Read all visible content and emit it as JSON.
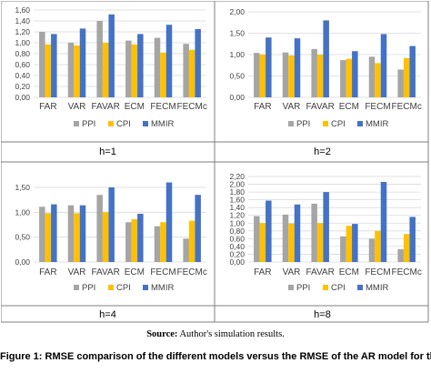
{
  "source_label": "Source:",
  "source_text": "Author's simulation results.",
  "figure_caption": "Figure 1: RMSE comparison of the different models versus the RMSE of the AR model for the",
  "colors": {
    "PPI": "#a5a5a5",
    "CPI": "#ffc000",
    "MMIR": "#4472c4",
    "grid": "#d9d9d9",
    "border": "#7f7f7f"
  },
  "chart_data": [
    {
      "type": "bar",
      "panel_label": "h=1",
      "categories": [
        "FAR",
        "VAR",
        "FAVAR",
        "ECM",
        "FECM",
        "FECMc"
      ],
      "series": [
        {
          "name": "PPI",
          "values": [
            1.2,
            1.0,
            1.4,
            1.04,
            1.09,
            0.98
          ]
        },
        {
          "name": "CPI",
          "values": [
            0.97,
            0.95,
            1.0,
            0.97,
            0.82,
            0.87
          ]
        },
        {
          "name": "MMIR",
          "values": [
            1.16,
            1.26,
            1.52,
            1.16,
            1.33,
            1.25
          ]
        }
      ],
      "ylim": [
        0,
        1.6
      ],
      "yticks": [
        "0,00",
        "0,20",
        "0,40",
        "0,60",
        "0,80",
        "1,00",
        "1,20",
        "1,40",
        "1,60"
      ],
      "tick_values": [
        0,
        0.2,
        0.4,
        0.6,
        0.8,
        1.0,
        1.2,
        1.4,
        1.6
      ],
      "legend": "bottom",
      "grid": true
    },
    {
      "type": "bar",
      "panel_label": "h=2",
      "categories": [
        "FAR",
        "VAR",
        "FAVAR",
        "ECM",
        "FECM",
        "FECMc"
      ],
      "series": [
        {
          "name": "PPI",
          "values": [
            1.04,
            1.05,
            1.13,
            0.87,
            0.95,
            0.65
          ]
        },
        {
          "name": "CPI",
          "values": [
            1.0,
            0.98,
            1.0,
            0.9,
            0.8,
            0.92
          ]
        },
        {
          "name": "MMIR",
          "values": [
            1.4,
            1.38,
            1.8,
            1.08,
            1.48,
            1.2
          ]
        }
      ],
      "ylim": [
        0,
        2.0
      ],
      "yticks": [
        "0,00",
        "0,50",
        "1,00",
        "1,50",
        "2,00"
      ],
      "tick_values": [
        0,
        0.5,
        1.0,
        1.5,
        2.0
      ],
      "legend": "bottom",
      "grid": true
    },
    {
      "type": "bar",
      "panel_label": "h=4",
      "categories": [
        "FAR",
        "VAR",
        "FAVAR",
        "ECM",
        "FECM",
        "FECMc"
      ],
      "series": [
        {
          "name": "PPI",
          "values": [
            1.11,
            1.14,
            1.35,
            0.8,
            0.72,
            0.47
          ]
        },
        {
          "name": "CPI",
          "values": [
            0.98,
            0.98,
            1.0,
            0.86,
            0.8,
            0.83
          ]
        },
        {
          "name": "MMIR",
          "values": [
            1.16,
            1.14,
            1.5,
            0.97,
            1.6,
            1.35
          ]
        }
      ],
      "ylim": [
        0,
        1.5
      ],
      "yticks": [
        "0,00",
        "0,50",
        "1,00",
        "1,50"
      ],
      "tick_values": [
        0,
        0.5,
        1.0,
        1.5
      ],
      "legend": "bottom",
      "grid": true
    },
    {
      "type": "bar",
      "panel_label": "h=8",
      "categories": [
        "FAR",
        "VAR",
        "FAVAR",
        "ECM",
        "FECM",
        "FECMc"
      ],
      "series": [
        {
          "name": "PPI",
          "values": [
            1.18,
            1.22,
            1.5,
            0.66,
            0.6,
            0.33
          ]
        },
        {
          "name": "CPI",
          "values": [
            1.0,
            0.99,
            1.0,
            0.93,
            0.8,
            0.72
          ]
        },
        {
          "name": "MMIR",
          "values": [
            1.58,
            1.48,
            1.8,
            0.98,
            2.06,
            1.16
          ]
        }
      ],
      "ylim": [
        0,
        2.2
      ],
      "yticks": [
        "0,00",
        "0,20",
        "0,40",
        "0,60",
        "0,80",
        "1,00",
        "1,20",
        "1,40",
        "1,60",
        "1,80",
        "2,00",
        "2,20"
      ],
      "tick_values": [
        0,
        0.2,
        0.4,
        0.6,
        0.8,
        1.0,
        1.2,
        1.4,
        1.6,
        1.8,
        2.0,
        2.2
      ],
      "legend": "bottom",
      "grid": true
    }
  ]
}
